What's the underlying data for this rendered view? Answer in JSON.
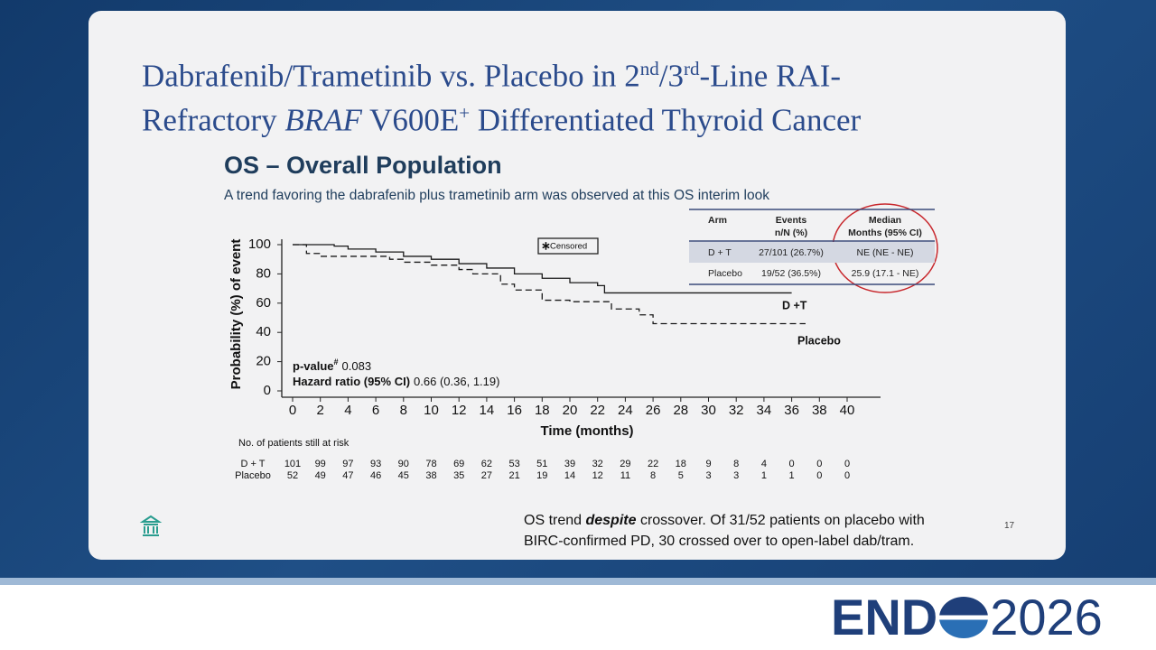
{
  "title": [
    "Dabrafenib/Trametinib vs. Placebo in 2",
    "nd",
    "/3",
    "rd",
    "-Line RAI-",
    "Refractory ",
    "BRAF",
    " V600E",
    "+",
    " Differentiated Thyroid Cancer"
  ],
  "heading": "OS – Overall Population",
  "subheading": "A trend favoring the dabrafenib plus trametinib arm was observed at this OS interim look",
  "table": {
    "header": [
      [
        "Arm"
      ],
      [
        "Events",
        "n/N (%)"
      ],
      [
        "Median",
        "Months (95% CI)"
      ]
    ],
    "rows": [
      [
        "D + T",
        "27/101 (26.7%)",
        "NE (NE - NE)"
      ],
      [
        "Placebo",
        "19/52 (36.5%)",
        "25.9 (17.1 - NE)"
      ]
    ]
  },
  "chart_data": {
    "type": "step",
    "ylabel": "Probability (%) of event",
    "xlabel": "Time (months)",
    "xlim": [
      0,
      40
    ],
    "xticks": [
      0,
      2,
      4,
      6,
      8,
      10,
      12,
      14,
      16,
      18,
      20,
      22,
      24,
      26,
      28,
      30,
      32,
      34,
      36,
      38,
      40
    ],
    "ylim": [
      0,
      100
    ],
    "yticks": [
      0,
      20,
      40,
      60,
      80,
      100
    ],
    "series": [
      {
        "name": "D +T",
        "color": "#1a1a1a",
        "dashed": false,
        "x": [
          0,
          2,
          3,
          4,
          6,
          8,
          10,
          12,
          14,
          16,
          18,
          20,
          22,
          22.5,
          36
        ],
        "values": [
          100,
          100,
          99,
          97,
          95,
          92,
          90,
          87,
          84,
          80,
          77,
          74,
          72,
          67,
          67
        ]
      },
      {
        "name": "Placebo",
        "color": "#1a1a1a",
        "dashed": true,
        "x": [
          0,
          0.5,
          1,
          2,
          7,
          8,
          10,
          12,
          13,
          15,
          16,
          18,
          20,
          23,
          25,
          26,
          37
        ],
        "values": [
          100,
          100,
          94,
          92,
          90,
          88,
          86,
          83,
          80,
          73,
          69,
          62,
          61,
          56,
          52,
          46,
          46
        ]
      }
    ],
    "annotations": {
      "censored": "Censored",
      "p_label": "p-value",
      "p_mark": "#",
      "p_value": "0.083",
      "hr_label": "Hazard ratio (95% CI)",
      "hr_value": "0.66 (0.36, 1.19)"
    },
    "risk_table": {
      "title": "No. of patients still at risk",
      "rows": [
        {
          "name": "D + T",
          "values": [
            101,
            99,
            97,
            93,
            90,
            78,
            69,
            62,
            53,
            51,
            39,
            32,
            29,
            22,
            18,
            9,
            8,
            4,
            0,
            0,
            0
          ]
        },
        {
          "name": "Placebo",
          "values": [
            52,
            49,
            47,
            46,
            45,
            38,
            35,
            27,
            21,
            19,
            14,
            12,
            11,
            8,
            5,
            3,
            3,
            1,
            1,
            0,
            0
          ]
        }
      ]
    }
  },
  "note": [
    "OS trend ",
    "despite",
    " crossover. Of 31/52 patients on placebo with",
    "BIRC-confirmed PD, 30 crossed over to open-label dab/tram."
  ],
  "slide_number": "17",
  "logo": [
    "END",
    "2026"
  ]
}
